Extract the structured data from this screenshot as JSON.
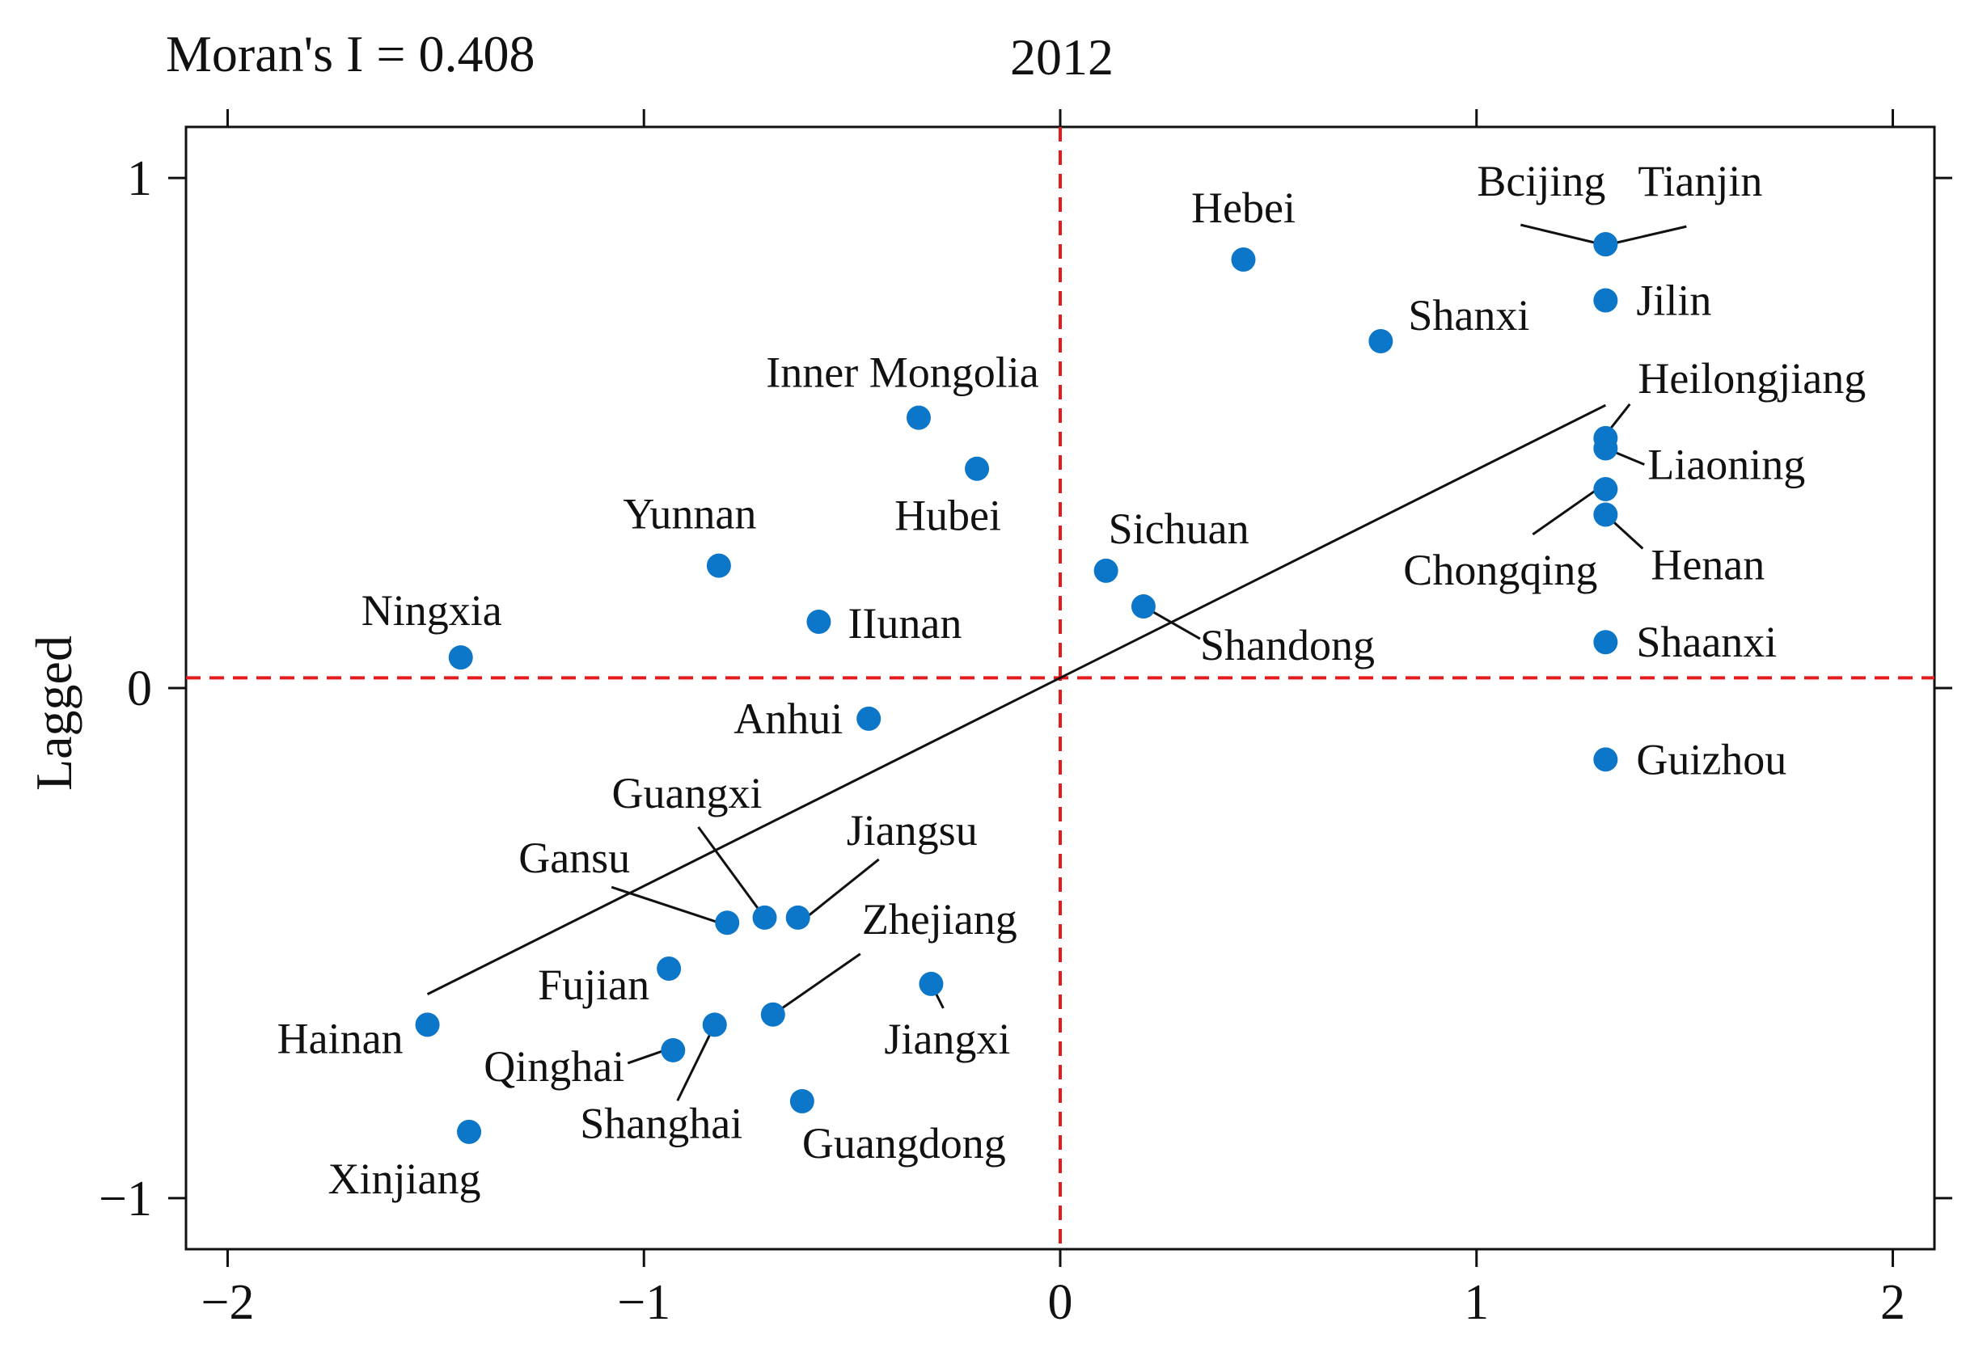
{
  "chart_data": {
    "type": "scatter",
    "title": "2012",
    "subtitle": "Moran's I = 0.408",
    "xlabel": "",
    "ylabel": "Lagged",
    "xlim": [
      -2.1,
      2.1
    ],
    "ylim": [
      -1.1,
      1.1
    ],
    "x_ticks": [
      -2,
      -1,
      0,
      1,
      2
    ],
    "x_tick_labels": [
      "−2",
      "−1",
      "0",
      "1",
      "2"
    ],
    "y_ticks": [
      -1,
      0,
      1
    ],
    "y_tick_labels": [
      "−1",
      "0",
      "1"
    ],
    "reference_lines": {
      "x": 0,
      "y": 0.02,
      "color": "#e41a1c",
      "style": "dashed"
    },
    "regression_line": {
      "slope": 0.408,
      "intercept": 0.02,
      "x_range": [
        -1.52,
        1.31
      ]
    },
    "grid": false,
    "point_color": "#0c77c9",
    "points": [
      {
        "name": "Beijing",
        "label": "Bcijing",
        "x": 1.31,
        "y": 0.87
      },
      {
        "name": "Tianjin",
        "label": "Tianjin",
        "x": 1.31,
        "y": 0.87
      },
      {
        "name": "Hebei",
        "label": "Hebei",
        "x": 0.44,
        "y": 0.84
      },
      {
        "name": "Jilin",
        "label": "Jilin",
        "x": 1.31,
        "y": 0.76
      },
      {
        "name": "Shanxi",
        "label": "Shanxi",
        "x": 0.77,
        "y": 0.68
      },
      {
        "name": "Inner Mongolia",
        "label": "Inner Mongolia",
        "x": -0.34,
        "y": 0.53
      },
      {
        "name": "Heilongjiang",
        "label": "Heilongjiang",
        "x": 1.31,
        "y": 0.49
      },
      {
        "name": "Liaoning",
        "label": "Liaoning",
        "x": 1.31,
        "y": 0.47
      },
      {
        "name": "Hubei",
        "label": "Hubei",
        "x": -0.2,
        "y": 0.43
      },
      {
        "name": "Chongqing",
        "label": "Chongqing",
        "x": 1.31,
        "y": 0.39
      },
      {
        "name": "Henan",
        "label": "Henan",
        "x": 1.31,
        "y": 0.34
      },
      {
        "name": "Yunnan",
        "label": "Yunnan",
        "x": -0.82,
        "y": 0.24
      },
      {
        "name": "Sichuan",
        "label": "Sichuan",
        "x": 0.11,
        "y": 0.23
      },
      {
        "name": "Shandong",
        "label": "Shandong",
        "x": 0.2,
        "y": 0.16
      },
      {
        "name": "Hunan",
        "label": "IIunan",
        "x": -0.58,
        "y": 0.13
      },
      {
        "name": "Shaanxi",
        "label": "Shaanxi",
        "x": 1.31,
        "y": 0.09
      },
      {
        "name": "Ningxia",
        "label": "Ningxia",
        "x": -1.44,
        "y": 0.06
      },
      {
        "name": "Anhui",
        "label": "Anhui",
        "x": -0.46,
        "y": -0.06
      },
      {
        "name": "Guizhou",
        "label": "Guizhou",
        "x": 1.31,
        "y": -0.14
      },
      {
        "name": "Guangxi",
        "label": "Guangxi",
        "x": -0.71,
        "y": -0.45
      },
      {
        "name": "Jiangsu",
        "label": "Jiangsu",
        "x": -0.63,
        "y": -0.45
      },
      {
        "name": "Gansu",
        "label": "Gansu",
        "x": -0.8,
        "y": -0.46
      },
      {
        "name": "Fujian",
        "label": "Fujian",
        "x": -0.94,
        "y": -0.55
      },
      {
        "name": "Jiangxi",
        "label": "Jiangxi",
        "x": -0.31,
        "y": -0.58
      },
      {
        "name": "Zhejiang",
        "label": "Zhejiang",
        "x": -0.69,
        "y": -0.64
      },
      {
        "name": "Shanghai",
        "label": "Shanghai",
        "x": -0.83,
        "y": -0.66
      },
      {
        "name": "Hainan",
        "label": "Hainan",
        "x": -1.52,
        "y": -0.66
      },
      {
        "name": "Qinghai",
        "label": "Qinghai",
        "x": -0.93,
        "y": -0.71
      },
      {
        "name": "Guangdong",
        "label": "Guangdong",
        "x": -0.62,
        "y": -0.81
      },
      {
        "name": "Xinjiang",
        "label": "Xinjiang",
        "x": -1.42,
        "y": -0.87
      }
    ]
  }
}
